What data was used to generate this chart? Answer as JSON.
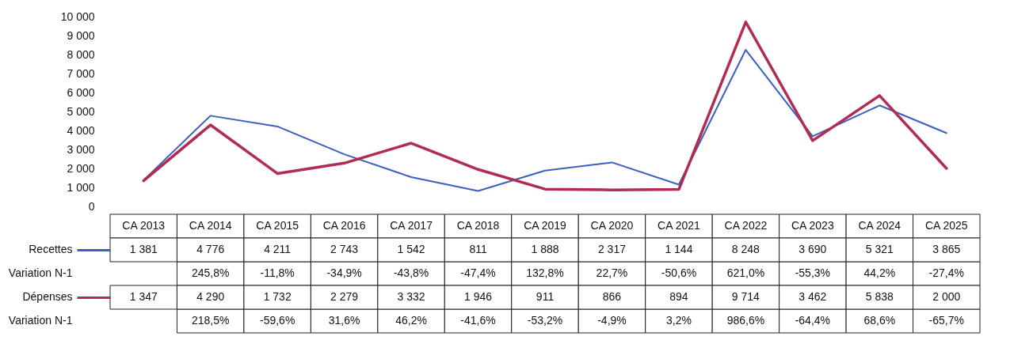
{
  "chart_data": {
    "type": "line",
    "categories": [
      "CA 2013",
      "CA 2014",
      "CA 2015",
      "CA 2016",
      "CA 2017",
      "CA 2018",
      "CA 2019",
      "CA 2020",
      "CA 2021",
      "CA 2022",
      "CA 2023",
      "CA 2024",
      "CA 2025"
    ],
    "series": [
      {
        "name": "Recettes",
        "color": "#3a5fbf",
        "values": [
          1381,
          4776,
          4211,
          2743,
          1542,
          811,
          1888,
          2317,
          1144,
          8248,
          3690,
          5321,
          3865
        ]
      },
      {
        "name": "Dépenses",
        "color": "#b02c52",
        "values": [
          1347,
          4290,
          1732,
          2279,
          3332,
          1946,
          911,
          866,
          894,
          9714,
          3462,
          5838,
          2000
        ]
      }
    ],
    "ylim": [
      0,
      10000
    ],
    "yticks": [
      0,
      1000,
      2000,
      3000,
      4000,
      5000,
      6000,
      7000,
      8000,
      9000,
      10000
    ],
    "grid": false,
    "legend": "left",
    "data_labels": true,
    "annotations": [
      "Variation N-1",
      "245,8%",
      "-11,8%",
      "-34,9%",
      "-43,8%",
      "-47,4%",
      "132,8%",
      "22,7%",
      "-50,6%",
      "621,0%",
      "-55,3%",
      "44,2%",
      "-27,4%",
      "Variation N-1",
      "218,5%",
      "-59,6%",
      "31,6%",
      "46,2%",
      "-41,6%",
      "-53,2%",
      "-4,9%",
      "3,2%",
      "986,6%",
      "-64,4%",
      "68,6%",
      "-65,7%"
    ]
  }
}
